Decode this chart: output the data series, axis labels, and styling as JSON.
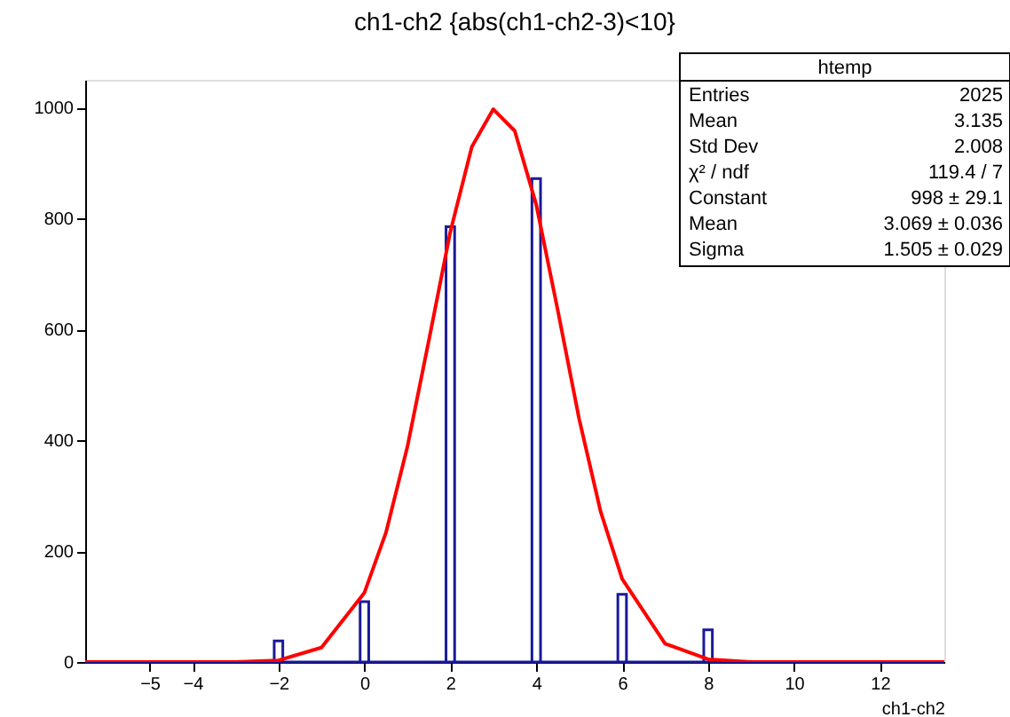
{
  "chart_data": {
    "type": "histogram",
    "title": "ch1-ch2 {abs(ch1-ch2-3)<10}",
    "xlabel": "ch1-ch2",
    "bins": [
      -6.5,
      -2.1,
      -1.9,
      -0.1,
      0.1,
      1.9,
      2.1,
      3.9,
      4.1,
      5.9,
      6.1,
      7.9,
      8.1,
      13.5
    ],
    "values": [
      0,
      38,
      0,
      109,
      0,
      785,
      0,
      872,
      0,
      122,
      0,
      58,
      0
    ],
    "color": "#1a1a99",
    "series": [
      {
        "type": "line",
        "color": "#ff0000",
        "x": [
          -6.5,
          -3,
          -2,
          -1,
          0,
          0.5,
          1,
          1.5,
          2,
          2.5,
          3,
          3.5,
          4,
          4.5,
          5,
          5.5,
          6,
          7,
          8,
          9,
          13.5
        ],
        "values": [
          0,
          0,
          3,
          26,
          125,
          233,
          388,
          580,
          776,
          929,
          997,
          958,
          825,
          635,
          438,
          271,
          150,
          33,
          5,
          0,
          0
        ]
      }
    ],
    "xlim": [
      -6.5,
      13.5
    ],
    "xticks": [
      -5,
      -4,
      -2,
      0,
      2,
      4,
      6,
      8,
      10,
      12
    ],
    "ylim": [
      0,
      1050
    ],
    "yticks": [
      0,
      200,
      400,
      600,
      800,
      1000
    ],
    "grid": false,
    "annotations": [
      "htemp",
      "Entries",
      "2025",
      "Mean",
      "3.135",
      "Std Dev",
      "2.008",
      "χ² / ndf",
      "119.4 / 7",
      "Constant",
      "998 ± 29.1",
      "Mean",
      "3.069 ± 0.036",
      "Sigma",
      "1.505 ± 0.029"
    ]
  }
}
